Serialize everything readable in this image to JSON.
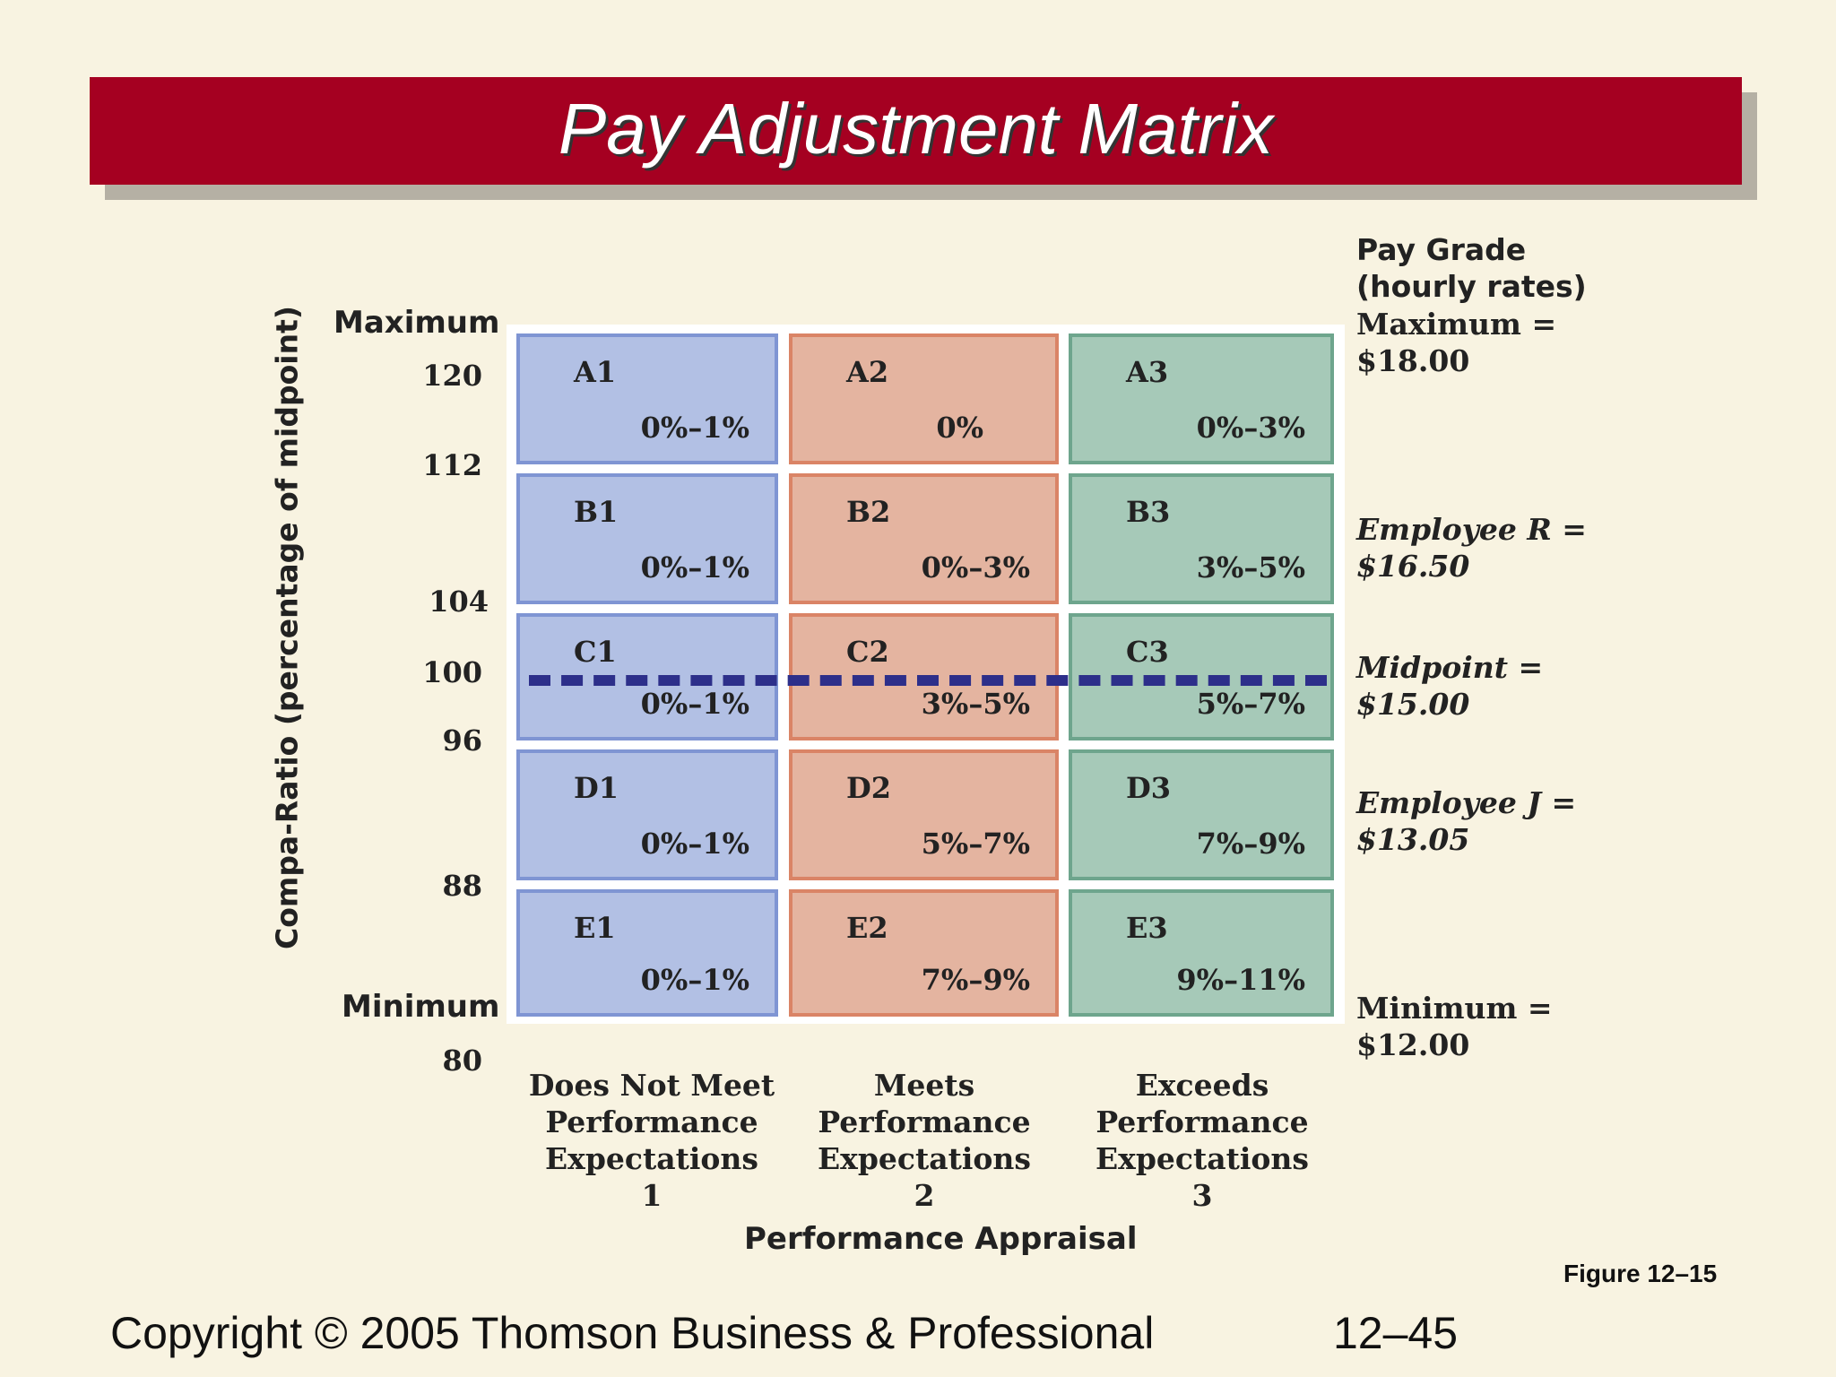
{
  "title": "Pay Adjustment Matrix",
  "axis": {
    "y_label": "Compa-Ratio (percentage of midpoint)",
    "max_label": "Maximum",
    "min_label": "Minimum",
    "ticks": [
      "120",
      "112",
      "104",
      "100",
      "96",
      "88",
      "80"
    ],
    "x_label": "Performance Appraisal"
  },
  "columns": [
    {
      "line1": "Does Not Meet",
      "line2": "Performance",
      "line3": "Expectations",
      "num": "1"
    },
    {
      "line1": "Meets",
      "line2": "Performance",
      "line3": "Expectations",
      "num": "2"
    },
    {
      "line1": "Exceeds",
      "line2": "Performance",
      "line3": "Expectations",
      "num": "3"
    }
  ],
  "cells": {
    "A1": {
      "label": "A1",
      "range": "0%–1%"
    },
    "A2": {
      "label": "A2",
      "range": "0%"
    },
    "A3": {
      "label": "A3",
      "range": "0%–3%"
    },
    "B1": {
      "label": "B1",
      "range": "0%–1%"
    },
    "B2": {
      "label": "B2",
      "range": "0%–3%"
    },
    "B3": {
      "label": "B3",
      "range": "3%–5%"
    },
    "C1": {
      "label": "C1",
      "range": "0%–1%"
    },
    "C2": {
      "label": "C2",
      "range": "3%–5%"
    },
    "C3": {
      "label": "C3",
      "range": "5%–7%"
    },
    "D1": {
      "label": "D1",
      "range": "0%–1%"
    },
    "D2": {
      "label": "D2",
      "range": "5%–7%"
    },
    "D3": {
      "label": "D3",
      "range": "7%–9%"
    },
    "E1": {
      "label": "E1",
      "range": "0%–1%"
    },
    "E2": {
      "label": "E2",
      "range": "7%–9%"
    },
    "E3": {
      "label": "E3",
      "range": "9%–11%"
    }
  },
  "pay_grade": {
    "header1": "Pay Grade",
    "header2": "(hourly rates)",
    "max_label": "Maximum =",
    "max_value": "$18.00",
    "emp_r_label": "Employee R =",
    "emp_r_value": "$16.50",
    "mid_label": "Midpoint =",
    "mid_value": "$15.00",
    "emp_j_label": "Employee J =",
    "emp_j_value": "$13.05",
    "min_label": "Minimum =",
    "min_value": "$12.00"
  },
  "figure_label": "Figure 12–15",
  "copyright": "Copyright © 2005 Thomson Business & Professional",
  "page_number": "12–45",
  "colors": {
    "banner": "#a50021",
    "col1": "#b2c0e4",
    "col2": "#e4b4a0",
    "col3": "#a6c9b8",
    "midline": "#2d2f8a"
  }
}
